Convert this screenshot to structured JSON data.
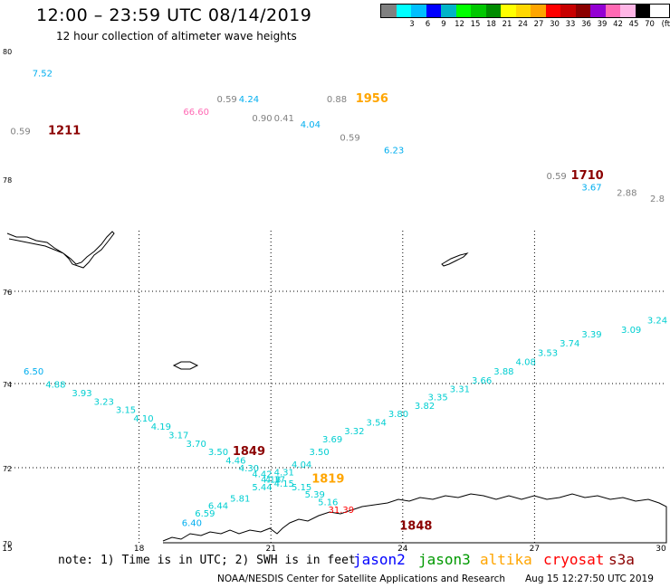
{
  "header": {
    "title": "12:00 – 23:59 UTC 08/14/2019",
    "subtitle": "12 hour collection of altimeter wave heights"
  },
  "legend": {
    "unit": "(ft)",
    "items": [
      {
        "label": "",
        "color": "#808080"
      },
      {
        "label": "3",
        "color": "#00ffff"
      },
      {
        "label": "6",
        "color": "#00bfff"
      },
      {
        "label": "9",
        "color": "#0000ff"
      },
      {
        "label": "12",
        "color": "#00b4c8"
      },
      {
        "label": "15",
        "color": "#00ff00"
      },
      {
        "label": "18",
        "color": "#00c800"
      },
      {
        "label": "21",
        "color": "#008c00"
      },
      {
        "label": "24",
        "color": "#ffff00"
      },
      {
        "label": "27",
        "color": "#ffd700"
      },
      {
        "label": "30",
        "color": "#ffa500"
      },
      {
        "label": "33",
        "color": "#ff0000"
      },
      {
        "label": "36",
        "color": "#c80000"
      },
      {
        "label": "39",
        "color": "#8b0000"
      },
      {
        "label": "42",
        "color": "#9400d3"
      },
      {
        "label": "45",
        "color": "#ff69b4"
      },
      {
        "label": "70",
        "color": "#ffb6e6"
      },
      {
        "label": "",
        "color": "#000000"
      }
    ]
  },
  "axes": {
    "lat_labels": [
      "80",
      "78",
      "76",
      "74",
      "72",
      "70"
    ],
    "lon_labels": [
      "15",
      "18",
      "21",
      "24",
      "27",
      "30"
    ]
  },
  "chart_data": {
    "type": "scatter",
    "lon_range": [
      15,
      30
    ],
    "lat_range": [
      70,
      80
    ],
    "passes": [
      {
        "time": "1211",
        "color": "#8b0000",
        "lon": 16.3,
        "lat": 78.7,
        "points": [
          {
            "value": "7.52",
            "lon": 15.8,
            "lat": 79.6,
            "color": "#00aeef"
          },
          {
            "value": "0.59",
            "lon": 15.3,
            "lat": 78.7,
            "color": "#808080"
          }
        ]
      },
      {
        "time": "1956",
        "color": "#ffa500",
        "lon": 23.3,
        "lat": 79.2,
        "points": [
          {
            "value": "66.60",
            "lon": 19.3,
            "lat": 79.0,
            "color": "#ff69b4"
          },
          {
            "value": "0.59",
            "lon": 20.0,
            "lat": 79.2,
            "color": "#808080"
          },
          {
            "value": "4.24",
            "lon": 20.5,
            "lat": 79.2,
            "color": "#00aeef"
          },
          {
            "value": "0.90",
            "lon": 20.8,
            "lat": 78.9,
            "color": "#808080"
          },
          {
            "value": "0.41",
            "lon": 21.3,
            "lat": 78.9,
            "color": "#808080"
          },
          {
            "value": "0.88",
            "lon": 22.5,
            "lat": 79.2,
            "color": "#808080"
          },
          {
            "value": "4.04",
            "lon": 21.9,
            "lat": 78.8,
            "color": "#00aeef"
          },
          {
            "value": "0.59",
            "lon": 22.8,
            "lat": 78.6,
            "color": "#808080"
          },
          {
            "value": "6.23",
            "lon": 23.8,
            "lat": 78.4,
            "color": "#00aeef"
          }
        ]
      },
      {
        "time": "1710",
        "color": "#8b0000",
        "lon": 28.2,
        "lat": 78.0,
        "points": [
          {
            "value": "0.59",
            "lon": 27.5,
            "lat": 78.0,
            "color": "#808080"
          },
          {
            "value": "3.67",
            "lon": 28.3,
            "lat": 77.8,
            "color": "#00aeef"
          },
          {
            "value": "2.88",
            "lon": 29.1,
            "lat": 77.7,
            "color": "#808080"
          },
          {
            "value": "2.8",
            "lon": 29.8,
            "lat": 77.6,
            "color": "#808080"
          }
        ]
      },
      {
        "time": "1849",
        "color": "#8b0000",
        "lon": 20.5,
        "lat": 72.3,
        "points": [
          {
            "value": "6.50",
            "lon": 15.6,
            "lat": 74.2,
            "color": "#00aeef"
          },
          {
            "value": "4.88",
            "lon": 16.1,
            "lat": 73.9,
            "color": "#00ced1"
          },
          {
            "value": "3.93",
            "lon": 16.7,
            "lat": 73.7,
            "color": "#00ced1"
          },
          {
            "value": "3.23",
            "lon": 17.2,
            "lat": 73.5,
            "color": "#00ced1"
          },
          {
            "value": "3.15",
            "lon": 17.7,
            "lat": 73.3,
            "color": "#00ced1"
          },
          {
            "value": "4.10",
            "lon": 18.1,
            "lat": 73.1,
            "color": "#00ced1"
          },
          {
            "value": "4.19",
            "lon": 18.5,
            "lat": 72.9,
            "color": "#00ced1"
          },
          {
            "value": "3.17",
            "lon": 18.9,
            "lat": 72.7,
            "color": "#00ced1"
          },
          {
            "value": "3.70",
            "lon": 19.3,
            "lat": 72.5,
            "color": "#00ced1"
          },
          {
            "value": "3.50",
            "lon": 19.8,
            "lat": 72.3,
            "color": "#00ced1"
          },
          {
            "value": "4.46",
            "lon": 20.2,
            "lat": 72.1,
            "color": "#00ced1"
          },
          {
            "value": "4.30",
            "lon": 20.5,
            "lat": 71.9,
            "color": "#00ced1"
          },
          {
            "value": "4.42",
            "lon": 20.8,
            "lat": 71.75,
            "color": "#00ced1"
          },
          {
            "value": "4.37",
            "lon": 21.1,
            "lat": 71.6,
            "color": "#00ced1"
          },
          {
            "value": "4.15",
            "lon": 21.3,
            "lat": 71.5,
            "color": "#00ced1"
          },
          {
            "value": "5.15",
            "lon": 21.7,
            "lat": 71.4,
            "color": "#00ced1"
          },
          {
            "value": "5.39",
            "lon": 22.0,
            "lat": 71.2,
            "color": "#00ced1"
          },
          {
            "value": "5.16",
            "lon": 22.3,
            "lat": 71.0,
            "color": "#00ced1"
          },
          {
            "value": "31.39",
            "lon": 22.6,
            "lat": 70.8,
            "color": "#ff0000"
          }
        ]
      },
      {
        "time": "1819",
        "color": "#ffa500",
        "lon": 22.3,
        "lat": 71.6,
        "points": [
          {
            "value": "3.24",
            "lon": 29.9,
            "lat": 75.3,
            "color": "#00ced1"
          },
          {
            "value": "3.09",
            "lon": 29.2,
            "lat": 75.1,
            "color": "#00ced1"
          },
          {
            "value": "3.39",
            "lon": 28.3,
            "lat": 75.0,
            "color": "#00ced1"
          },
          {
            "value": "3.74",
            "lon": 27.8,
            "lat": 74.8,
            "color": "#00ced1"
          },
          {
            "value": "3.53",
            "lon": 27.3,
            "lat": 74.6,
            "color": "#00ced1"
          },
          {
            "value": "4.08",
            "lon": 26.8,
            "lat": 74.4,
            "color": "#00ced1"
          },
          {
            "value": "3.88",
            "lon": 26.3,
            "lat": 74.2,
            "color": "#00ced1"
          },
          {
            "value": "3.66",
            "lon": 25.8,
            "lat": 74.0,
            "color": "#00ced1"
          },
          {
            "value": "3.31",
            "lon": 25.3,
            "lat": 73.8,
            "color": "#00ced1"
          },
          {
            "value": "3.35",
            "lon": 24.8,
            "lat": 73.6,
            "color": "#00ced1"
          },
          {
            "value": "3.82",
            "lon": 24.5,
            "lat": 73.4,
            "color": "#00ced1"
          },
          {
            "value": "3.80",
            "lon": 23.9,
            "lat": 73.2,
            "color": "#00ced1"
          },
          {
            "value": "3.54",
            "lon": 23.4,
            "lat": 73.0,
            "color": "#00ced1"
          },
          {
            "value": "3.32",
            "lon": 22.9,
            "lat": 72.8,
            "color": "#00ced1"
          },
          {
            "value": "3.69",
            "lon": 22.4,
            "lat": 72.6,
            "color": "#00ced1"
          },
          {
            "value": "3.50",
            "lon": 22.1,
            "lat": 72.3,
            "color": "#00ced1"
          },
          {
            "value": "4.04",
            "lon": 21.7,
            "lat": 72.0,
            "color": "#00ced1"
          },
          {
            "value": "4.31",
            "lon": 21.3,
            "lat": 71.8,
            "color": "#00ced1"
          },
          {
            "value": "4.18",
            "lon": 21.0,
            "lat": 71.6,
            "color": "#00ced1"
          },
          {
            "value": "5.44",
            "lon": 20.8,
            "lat": 71.4,
            "color": "#00ced1"
          },
          {
            "value": "5.81",
            "lon": 20.3,
            "lat": 71.1,
            "color": "#00ced1"
          },
          {
            "value": "6.44",
            "lon": 19.8,
            "lat": 70.9,
            "color": "#00ced1"
          },
          {
            "value": "6.59",
            "lon": 19.5,
            "lat": 70.7,
            "color": "#00ced1"
          },
          {
            "value": "6.40",
            "lon": 19.2,
            "lat": 70.45,
            "color": "#00aeef"
          }
        ]
      },
      {
        "time": "1848",
        "color": "#8b0000",
        "lon": 24.3,
        "lat": 70.35,
        "points": []
      }
    ]
  },
  "footer": {
    "note": "note: 1) Time is in UTC; 2) SWH is in feet",
    "satellites": [
      {
        "name": "jason2",
        "color": "#0000ff"
      },
      {
        "name": "jason3",
        "color": "#009900"
      },
      {
        "name": "altika",
        "color": "#ffa500"
      },
      {
        "name": "cryosat",
        "color": "#ff0000"
      },
      {
        "name": "s3a",
        "color": "#8b0000"
      }
    ],
    "credit": "NOAA/NESDIS Center for Satellite Applications and Research",
    "timestamp": "Aug 15 12:27:50 UTC 2019"
  }
}
